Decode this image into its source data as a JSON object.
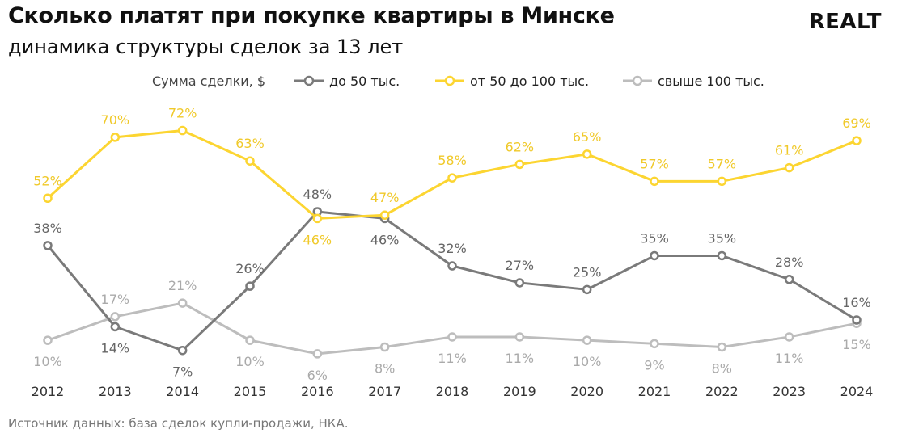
{
  "header": {
    "title": "Сколько платят при покупке квартиры в Минске",
    "subtitle": "динамика структуры сделок за 13 лет",
    "logo": "REALT"
  },
  "footer": {
    "source": "Источник данных: база сделок купли-продажи, НКА."
  },
  "colors": {
    "dark": "#7a7a7a",
    "yellow": "#fcd531",
    "light": "#bdbdbd",
    "yellow_label": "#f0c92a",
    "dark_label": "#666666",
    "light_label": "#aaaaaa"
  },
  "chart_data": {
    "type": "line",
    "title": "Сколько платят при покупке квартиры в Минске",
    "subtitle": "динамика структуры сделок за 13 лет",
    "legend_title": "Сумма сделки, $",
    "legend_position": "top",
    "grid": false,
    "x": [
      "2012",
      "2013",
      "2014",
      "2015",
      "2016",
      "2017",
      "2018",
      "2019",
      "2020",
      "2021",
      "2022",
      "2023",
      "2024"
    ],
    "ylim": [
      0,
      80
    ],
    "series": [
      {
        "name": "до 50 тыс.",
        "values": [
          38,
          14,
          7,
          26,
          48,
          46,
          32,
          27,
          25,
          35,
          35,
          28,
          16
        ],
        "labels": [
          "38%",
          "14%",
          "7%",
          "26%",
          "48%",
          "46%",
          "32%",
          "27%",
          "25%",
          "35%",
          "35%",
          "28%",
          "16%"
        ]
      },
      {
        "name": "от 50 до 100 тыс.",
        "values": [
          52,
          70,
          72,
          63,
          46,
          47,
          58,
          62,
          65,
          57,
          57,
          61,
          69
        ],
        "labels": [
          "52%",
          "70%",
          "72%",
          "63%",
          "46%",
          "47%",
          "58%",
          "62%",
          "65%",
          "57%",
          "57%",
          "61%",
          "69%"
        ]
      },
      {
        "name": "свыше 100 тыс.",
        "values": [
          10,
          17,
          21,
          10,
          6,
          8,
          11,
          11,
          10,
          9,
          8,
          11,
          15
        ],
        "labels": [
          "10%",
          "17%",
          "21%",
          "10%",
          "6%",
          "8%",
          "11%",
          "11%",
          "10%",
          "9%",
          "8%",
          "11%",
          "15%"
        ]
      }
    ]
  }
}
